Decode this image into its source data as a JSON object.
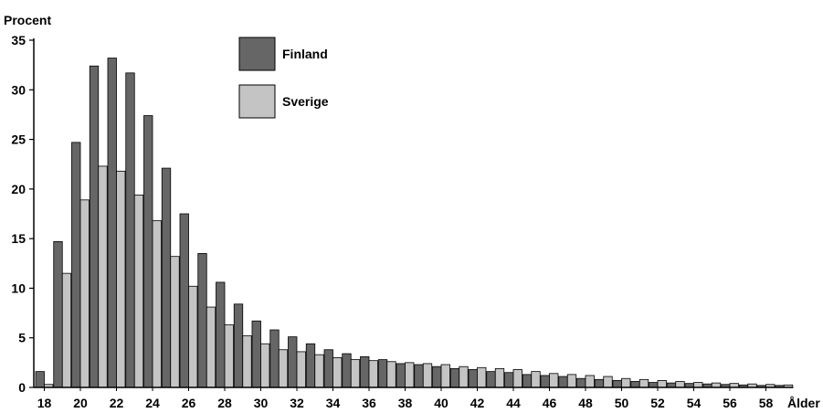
{
  "chart_data": {
    "type": "bar",
    "ylabel": "Procent",
    "xlabel": "Ålder",
    "ylim": [
      0,
      35
    ],
    "yticks": [
      0,
      5,
      10,
      15,
      20,
      25,
      30,
      35
    ],
    "grid": false,
    "legend_position": "top-center",
    "categories": [
      18,
      19,
      20,
      21,
      22,
      23,
      24,
      25,
      26,
      27,
      28,
      29,
      30,
      31,
      32,
      33,
      34,
      35,
      36,
      37,
      38,
      39,
      40,
      41,
      42,
      43,
      44,
      45,
      46,
      47,
      48,
      49,
      50,
      51,
      52,
      53,
      54,
      55,
      56,
      57,
      58,
      59
    ],
    "x_tick_labels": [
      "18",
      "20",
      "22",
      "24",
      "26",
      "28",
      "30",
      "32",
      "34",
      "36",
      "38",
      "40",
      "42",
      "44",
      "46",
      "48",
      "50",
      "52",
      "54",
      "56",
      "58"
    ],
    "series": [
      {
        "name": "Finland",
        "color": "#666666",
        "values": [
          1.6,
          14.7,
          24.7,
          32.4,
          33.2,
          31.7,
          27.4,
          22.1,
          17.5,
          13.5,
          10.6,
          8.4,
          6.7,
          5.8,
          5.1,
          4.4,
          3.8,
          3.4,
          3.1,
          2.8,
          2.4,
          2.3,
          2.1,
          1.9,
          1.8,
          1.6,
          1.5,
          1.3,
          1.2,
          1.1,
          0.9,
          0.8,
          0.7,
          0.6,
          0.5,
          0.45,
          0.4,
          0.35,
          0.3,
          0.25,
          0.2,
          0.2
        ]
      },
      {
        "name": "Sverige",
        "color": "#c4c4c4",
        "values": [
          0.3,
          11.5,
          18.9,
          22.3,
          21.8,
          19.4,
          16.8,
          13.2,
          10.2,
          8.1,
          6.3,
          5.2,
          4.4,
          3.8,
          3.6,
          3.3,
          3.0,
          2.8,
          2.7,
          2.6,
          2.5,
          2.4,
          2.3,
          2.1,
          2.0,
          1.9,
          1.8,
          1.6,
          1.4,
          1.3,
          1.2,
          1.1,
          0.9,
          0.8,
          0.7,
          0.6,
          0.5,
          0.45,
          0.4,
          0.35,
          0.3,
          0.25
        ]
      }
    ]
  }
}
